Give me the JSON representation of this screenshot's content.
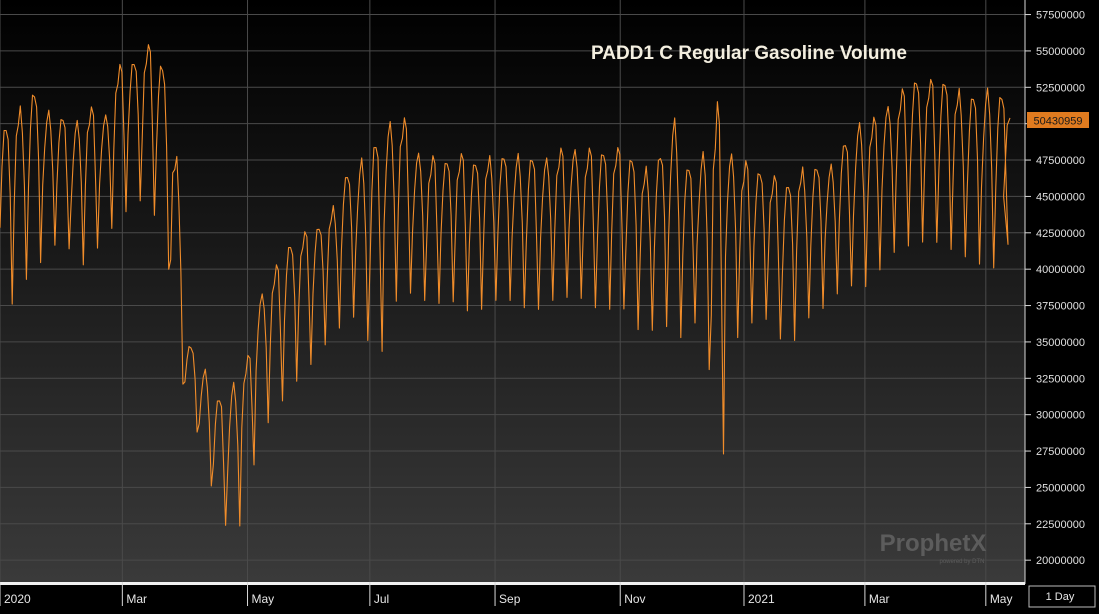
{
  "chart_data": {
    "type": "line",
    "title": "PADD1 C Regular Gasoline Volume",
    "xlabel": "",
    "ylabel": "",
    "ylim": [
      18500000,
      58500000
    ],
    "grid": true,
    "y_ticks": [
      20000000,
      22500000,
      25000000,
      27500000,
      30000000,
      32500000,
      35000000,
      37500000,
      40000000,
      42500000,
      45000000,
      47500000,
      50000000,
      52500000,
      55000000,
      57500000
    ],
    "y_tick_labels": [
      "20000000",
      "22500000",
      "25000000",
      "27500000",
      "30000000",
      "32500000",
      "35000000",
      "37500000",
      "40000000",
      "42500000",
      "45000000",
      "47500000",
      "50000000",
      "52500000",
      "55000000",
      "57500000"
    ],
    "x_ticks": [
      {
        "label": "2020",
        "week": 0
      },
      {
        "label": "Mar",
        "week": 8.6
      },
      {
        "label": "May",
        "week": 17.4
      },
      {
        "label": "Jul",
        "week": 26
      },
      {
        "label": "Sep",
        "week": 34.8
      },
      {
        "label": "Nov",
        "week": 43.6
      },
      {
        "label": "2021",
        "week": 52.3
      },
      {
        "label": "Mar",
        "week": 60.8
      },
      {
        "label": "May",
        "week": 69.3
      }
    ],
    "last_value": "50430959",
    "period": "1 Day",
    "series": [
      {
        "color": "#f08c2a",
        "weekly_high": [
          50000000,
          51000000,
          52500000,
          51000000,
          50500000,
          50000000,
          51500000,
          50000000,
          54000000,
          54500000,
          55500000,
          55000000,
          50000000,
          35000000,
          33500000,
          31000000,
          32000000,
          33500000,
          38000000,
          40000000,
          42000000,
          42500000,
          43000000,
          44000000,
          46500000,
          47500000,
          48500000,
          50000000,
          51000000,
          48000000,
          47800000,
          47800000,
          48000000,
          47600000,
          47800000,
          47900000,
          48000000,
          47700000,
          47500000,
          48500000,
          48200000,
          48300000,
          48500000,
          48400000,
          48100000,
          47000000,
          47500000,
          51000000,
          47000000,
          47300000,
          52500000,
          48000000,
          47500000,
          47200000,
          46500000,
          46000000,
          47000000,
          47200000,
          47000000,
          48500000,
          50000000,
          50500000,
          51000000,
          52200000,
          53500000,
          53000000,
          53300000,
          52500000,
          52000000,
          52500000,
          52200000,
          50400000
        ],
        "weekly_low": [
          37000000,
          39000000,
          40000000,
          41500000,
          42000000,
          40000000,
          41000000,
          42500000,
          43500000,
          45000000,
          44000000,
          43000000,
          33000000,
          30000000,
          26000000,
          23000000,
          21000000,
          25500000,
          29000000,
          30500000,
          32000000,
          33000000,
          34500000,
          35500000,
          37000000,
          36000000,
          33000000,
          37500000,
          38500000,
          38000000,
          37500000,
          38000000,
          37200000,
          37000000,
          37800000,
          38000000,
          37500000,
          37000000,
          37800000,
          38000000,
          38200000,
          37500000,
          37000000,
          37800000,
          36000000,
          35500000,
          36500000,
          35000000,
          36000000,
          37000000,
          24000000,
          35000000,
          36000000,
          37000000,
          35500000,
          34500000,
          36500000,
          37000000,
          38000000,
          39000000,
          38500000,
          39500000,
          41000000,
          41500000,
          41800000,
          42000000,
          41500000,
          41000000,
          40500000,
          40000000,
          40300000,
          45000000
        ]
      }
    ]
  },
  "watermark": {
    "brand": "ProphetX",
    "tagline": "powered by DTN"
  }
}
